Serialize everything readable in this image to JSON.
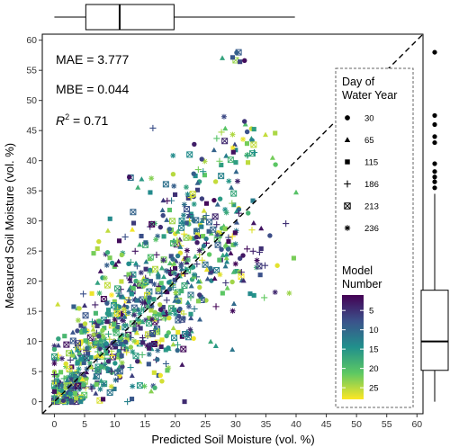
{
  "chart_data": {
    "type": "scatter",
    "xlabel": "Predicted Soil Moisture (vol. %)",
    "ylabel": "Measured Soil Moisture (vol. %)",
    "xlim": [
      -2,
      61
    ],
    "ylim": [
      -2,
      61
    ],
    "x_ticks": [
      "0",
      "5",
      "10",
      "15",
      "20",
      "25",
      "30",
      "35",
      "40",
      "45",
      "50",
      "55",
      "60"
    ],
    "y_ticks": [
      "0",
      "5",
      "10",
      "15",
      "20",
      "25",
      "30",
      "35",
      "40",
      "45",
      "50",
      "55",
      "60"
    ],
    "reference_line": {
      "type": "1:1",
      "style": "dashed"
    },
    "stats": {
      "mae": "MAE = 3.777",
      "mbe": "MBE = 0.044",
      "r2_prefix": "R",
      "r2_exp": "2",
      "r2_value": " = 0.71"
    },
    "legend_shape": {
      "title_line1": "Day of",
      "title_line2": "Water Year",
      "entries": [
        {
          "label": "30",
          "shape": "circle"
        },
        {
          "label": "65",
          "shape": "triangle"
        },
        {
          "label": "115",
          "shape": "square"
        },
        {
          "label": "186",
          "shape": "plus"
        },
        {
          "label": "213",
          "shape": "boxed-x"
        },
        {
          "label": "236",
          "shape": "asterisk"
        }
      ]
    },
    "legend_color": {
      "title_line1": "Model",
      "title_line2": "Number",
      "ticks": [
        "5",
        "10",
        "15",
        "20",
        "25"
      ],
      "tick_values": [
        5,
        10,
        15,
        20,
        25
      ],
      "range": [
        1,
        28
      ],
      "colors": [
        "#440154",
        "#3b528b",
        "#21908c",
        "#5dc863",
        "#fde725"
      ]
    },
    "boxplot_x": {
      "whisker_low": 0,
      "q1": 5.2,
      "median": 10.8,
      "q3": 19.8,
      "whisker_high": 39.8
    },
    "boxplot_y": {
      "whisker_low": 0,
      "q1": 5.2,
      "median": 10,
      "q3": 18.5,
      "whisker_high": 34.5,
      "outliers": [
        35.5,
        36.5,
        37.3,
        38.2,
        39.5,
        43,
        44,
        46,
        47.5,
        58
      ]
    },
    "point_clusters": [
      {
        "cx": 1,
        "cy": 1,
        "sx": 1.0,
        "sy": 1.0,
        "n": 45
      },
      {
        "cx": 3,
        "cy": 3,
        "sx": 1.8,
        "sy": 2.2,
        "n": 80
      },
      {
        "cx": 6,
        "cy": 7,
        "sx": 2.8,
        "sy": 3.6,
        "n": 130
      },
      {
        "cx": 10,
        "cy": 11,
        "sx": 3.4,
        "sy": 4.2,
        "n": 150
      },
      {
        "cx": 15,
        "cy": 14,
        "sx": 3.8,
        "sy": 4.6,
        "n": 130
      },
      {
        "cx": 19,
        "cy": 18,
        "sx": 4.2,
        "sy": 5.5,
        "n": 110
      },
      {
        "cx": 22,
        "cy": 22,
        "sx": 4.0,
        "sy": 5.5,
        "n": 80
      },
      {
        "cx": 25,
        "cy": 27,
        "sx": 4.0,
        "sy": 4.5,
        "n": 55
      },
      {
        "cx": 28,
        "cy": 22,
        "sx": 4.0,
        "sy": 4.0,
        "n": 40
      },
      {
        "cx": 23,
        "cy": 36,
        "sx": 5.0,
        "sy": 3.0,
        "n": 35
      },
      {
        "cx": 30,
        "cy": 42,
        "sx": 3.5,
        "sy": 3.2,
        "n": 25
      },
      {
        "cx": 18,
        "cy": 31,
        "sx": 4.5,
        "sy": 2.5,
        "n": 25
      },
      {
        "cx": 10,
        "cy": 24,
        "sx": 3.0,
        "sy": 2.5,
        "n": 20
      },
      {
        "cx": 32,
        "cy": 30,
        "sx": 3.5,
        "sy": 3.5,
        "n": 20
      },
      {
        "cx": 31,
        "cy": 57,
        "sx": 2.2,
        "sy": 0.8,
        "n": 7
      },
      {
        "cx": 14,
        "cy": 2,
        "sx": 3.0,
        "sy": 1.2,
        "n": 12
      },
      {
        "cx": 30,
        "cy": 45,
        "sx": 3.0,
        "sy": 2.0,
        "n": 12
      }
    ]
  }
}
